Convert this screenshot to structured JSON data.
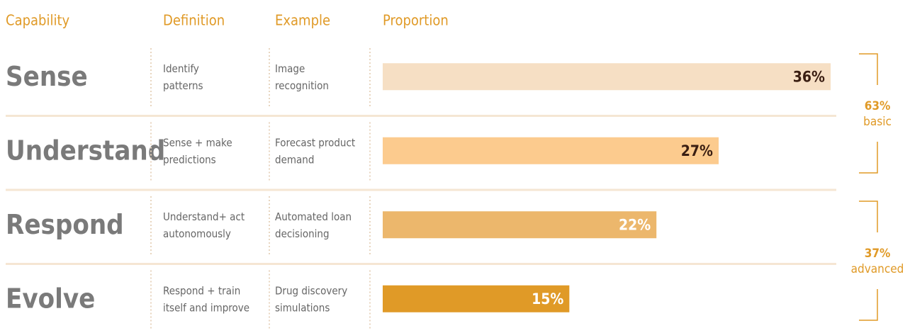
{
  "chart_data": {
    "type": "bar",
    "headers": [
      "Capability",
      "Definition",
      "Example",
      "Proportion"
    ],
    "categories": [
      "Sense",
      "Understand",
      "Respond",
      "Evolve"
    ],
    "definitions": [
      [
        "Identify",
        "patterns"
      ],
      [
        "Sense + make",
        "predictions"
      ],
      [
        "Understand+ act",
        "autonomously"
      ],
      [
        "Respond + train",
        "itself and improve"
      ]
    ],
    "examples": [
      [
        "Image",
        "recognition"
      ],
      [
        "Forecast product",
        "demand"
      ],
      [
        "Automated loan",
        "decisioning"
      ],
      [
        "Drug discovery",
        "simulations"
      ]
    ],
    "values": [
      36,
      27,
      22,
      15
    ],
    "value_labels": [
      "36%",
      "27%",
      "22%",
      "15%"
    ],
    "colors": [
      "#f6dfc4",
      "#fccb8e",
      "#ecb76c",
      "#e09a27"
    ],
    "groups": [
      {
        "value": 63,
        "label": "63%",
        "name": "basic"
      },
      {
        "value": 37,
        "label": "37%",
        "name": "advanced"
      }
    ]
  }
}
